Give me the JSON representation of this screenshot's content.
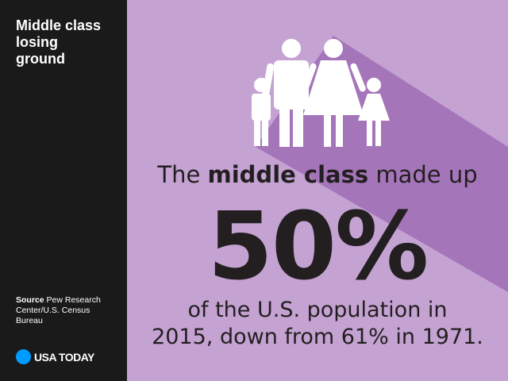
{
  "sidebar": {
    "title_lines": [
      "Middle class",
      "losing",
      "ground"
    ],
    "source_label": "Source",
    "source_lines": [
      "Pew Research",
      "Center/U.S. Census",
      "Bureau"
    ],
    "logo": "USA TODAY"
  },
  "main": {
    "headline": {
      "before": "The",
      "bold": "middle class",
      "after": "made up"
    },
    "stat": "50%",
    "footer_lines": [
      "of the U.S. population in",
      "2015, down from 61% in 1971."
    ]
  }
}
